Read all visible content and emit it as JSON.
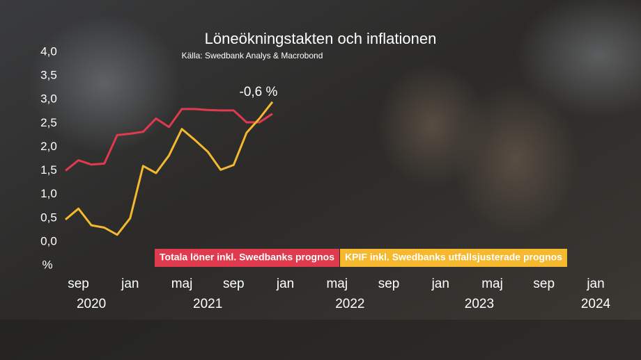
{
  "chart_data": {
    "type": "line",
    "title": "Löneökningstakten och inflationen",
    "subtitle": "Källa: Swedbank Analys & Macrobond",
    "y_label": "%",
    "annotation": "-0,6 %",
    "x": [
      "2020-08",
      "2020-09",
      "2020-10",
      "2020-11",
      "2020-12",
      "2021-01",
      "2021-02",
      "2021-03",
      "2021-04",
      "2021-05",
      "2021-06",
      "2021-07",
      "2021-08",
      "2021-09",
      "2021-10",
      "2021-11",
      "2021-12"
    ],
    "series": [
      {
        "name": "Totala löner inkl. Swedbanks prognos",
        "color": "#e03a4e",
        "values": [
          1.5,
          1.72,
          1.63,
          1.65,
          2.25,
          2.28,
          2.32,
          2.6,
          2.42,
          2.8,
          2.8,
          2.78,
          2.77,
          2.77,
          2.52,
          2.52,
          2.7
        ]
      },
      {
        "name": "KPIF inkl. Swedbanks utfallsjusterade prognos",
        "color": "#f5b82e",
        "values": [
          0.47,
          0.7,
          0.35,
          0.3,
          0.15,
          0.5,
          1.6,
          1.45,
          1.82,
          2.38,
          2.15,
          1.9,
          1.52,
          1.62,
          2.3,
          2.6,
          2.95
        ]
      }
    ],
    "xlim": [
      "2020-08",
      "2024-01"
    ],
    "xticks": [
      {
        "value": "2020-09",
        "label": "sep"
      },
      {
        "value": "2021-01",
        "label": "jan"
      },
      {
        "value": "2021-05",
        "label": "maj"
      },
      {
        "value": "2021-09",
        "label": "sep"
      },
      {
        "value": "2022-01",
        "label": "jan"
      },
      {
        "value": "2022-05",
        "label": "maj"
      },
      {
        "value": "2022-09",
        "label": "sep"
      },
      {
        "value": "2023-01",
        "label": "jan"
      },
      {
        "value": "2023-05",
        "label": "maj"
      },
      {
        "value": "2023-09",
        "label": "sep"
      },
      {
        "value": "2024-01",
        "label": "jan"
      }
    ],
    "year_ticks": [
      {
        "value": "2020-10",
        "label": "2020"
      },
      {
        "value": "2021-07",
        "label": "2021"
      },
      {
        "value": "2022-06",
        "label": "2022"
      },
      {
        "value": "2023-04",
        "label": "2023"
      },
      {
        "value": "2024-01",
        "label": "2024"
      }
    ],
    "ylim": [
      0,
      4
    ],
    "yticks": [
      {
        "value": 0,
        "label": "0,0"
      },
      {
        "value": 0.5,
        "label": "0,5"
      },
      {
        "value": 1,
        "label": "1,0"
      },
      {
        "value": 1.5,
        "label": "1,5"
      },
      {
        "value": 2,
        "label": "2,0"
      },
      {
        "value": 2.5,
        "label": "2,5"
      },
      {
        "value": 3,
        "label": "3,0"
      },
      {
        "value": 3.5,
        "label": "3,5"
      },
      {
        "value": 4,
        "label": "4,0"
      }
    ],
    "grid": false
  }
}
